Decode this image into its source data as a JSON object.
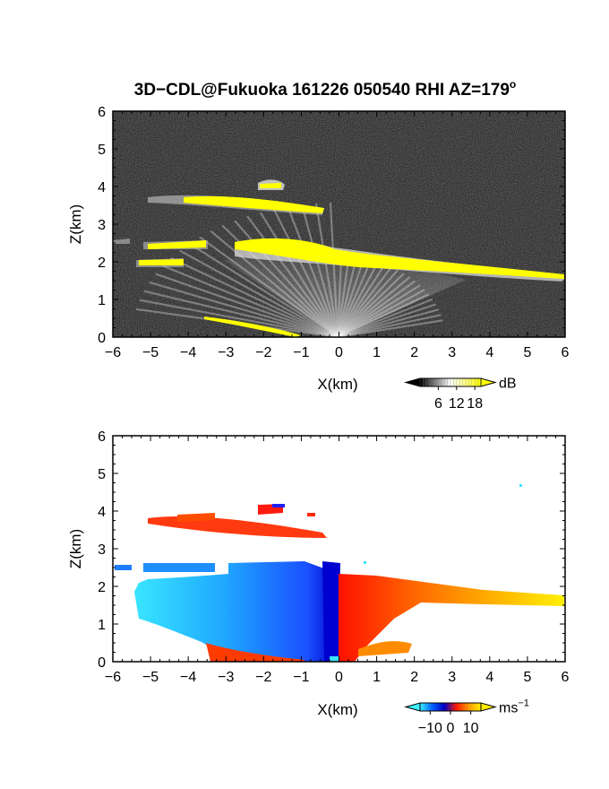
{
  "figure": {
    "title": "3D−CDL@Fukuoka 161226 050540 RHI AZ=179",
    "title_degree_symbol": "o"
  },
  "chart_data": [
    {
      "type": "heatmap",
      "id": "reflectivity",
      "xlabel": "X(km)",
      "ylabel": "Z(km)",
      "xlim": [
        -6,
        6
      ],
      "ylim": [
        0,
        6
      ],
      "x_ticks": [
        -6,
        -5,
        -4,
        -3,
        -2,
        -1,
        0,
        1,
        2,
        3,
        4,
        5,
        6
      ],
      "y_ticks": [
        0,
        1,
        2,
        3,
        4,
        5,
        6
      ],
      "colorbar": {
        "unit": "dB",
        "ticks": [
          "6",
          "12",
          "18"
        ],
        "range": [
          0,
          20
        ],
        "colors": [
          "#000000",
          "#ffffff",
          "#ffff00"
        ]
      },
      "background": "#1c1c1c",
      "features": [
        {
          "name": "upper layer",
          "x": [
            -5,
            -0.3
          ],
          "z": [
            3.3,
            3.9
          ],
          "strength": "high"
        },
        {
          "name": "cloud cap",
          "x": [
            -2.2,
            -1.4
          ],
          "z": [
            3.95,
            4.15
          ],
          "strength": "high"
        },
        {
          "name": "main layer",
          "x": [
            -3,
            6
          ],
          "z": [
            1.6,
            2.6
          ],
          "strength": "high"
        },
        {
          "name": "left patches",
          "x": [
            -5.6,
            -4
          ],
          "z": [
            1.9,
            2.6
          ],
          "strength": "high"
        },
        {
          "name": "surface echo",
          "x": [
            -3.6,
            -1
          ],
          "z": [
            0,
            0.5
          ],
          "strength": "high"
        }
      ]
    },
    {
      "type": "heatmap",
      "id": "doppler",
      "xlabel": "X(km)",
      "ylabel": "Z(km)",
      "xlim": [
        -6,
        6
      ],
      "ylim": [
        0,
        6
      ],
      "x_ticks": [
        -6,
        -5,
        -4,
        -3,
        -2,
        -1,
        0,
        1,
        2,
        3,
        4,
        5,
        6
      ],
      "y_ticks": [
        0,
        1,
        2,
        3,
        4,
        5,
        6
      ],
      "colorbar": {
        "unit": "ms",
        "unit_exponent": "−1",
        "ticks": [
          "−10",
          "0",
          "10"
        ],
        "range": [
          -15,
          15
        ],
        "colors": [
          "#3cf0ff",
          "#0060ff",
          "#0000c0",
          "#ff1a00",
          "#ff9900",
          "#ffee00"
        ]
      },
      "features": [
        {
          "name": "upper layer",
          "x": [
            -5.4,
            -0.3
          ],
          "z": [
            3.3,
            3.9
          ],
          "velocity": 6
        },
        {
          "name": "cloud cap",
          "x": [
            -2.2,
            -1.4
          ],
          "z": [
            3.95,
            4.2
          ],
          "velocity": 4
        },
        {
          "name": "approaching flow",
          "x": [
            -5.6,
            0
          ],
          "z": [
            0,
            2.6
          ],
          "velocity": -8
        },
        {
          "name": "receding flow",
          "x": [
            0,
            6
          ],
          "z": [
            0,
            2.4
          ],
          "velocity": 9
        }
      ]
    }
  ]
}
